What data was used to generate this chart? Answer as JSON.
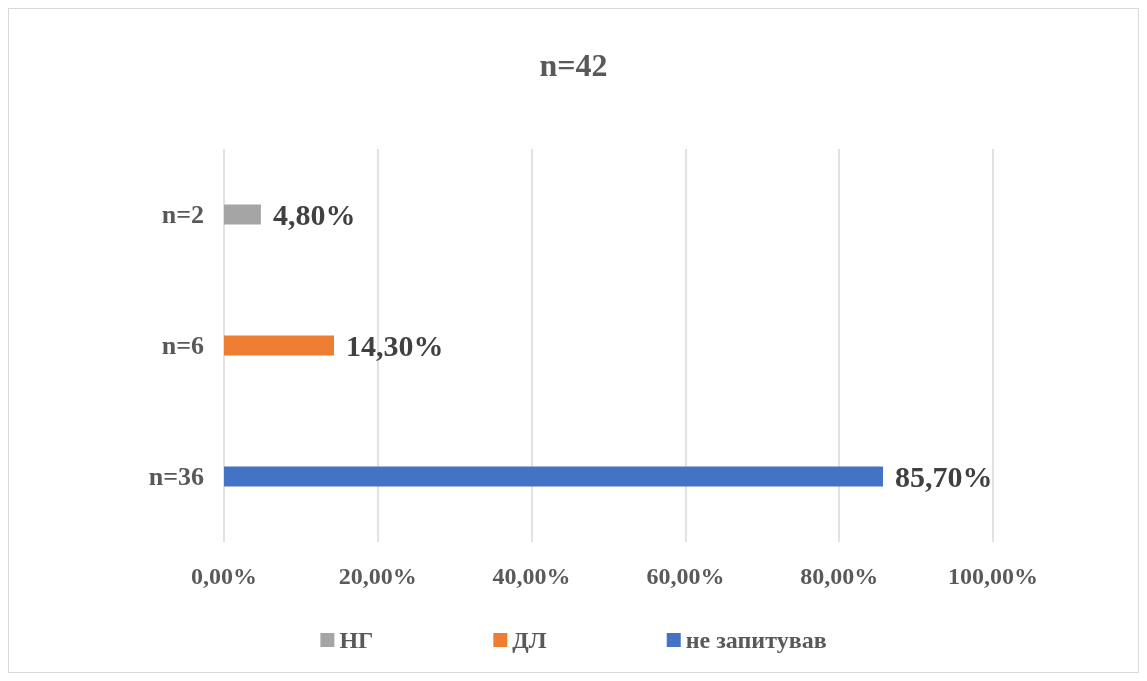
{
  "chart_data": {
    "type": "bar",
    "orientation": "horizontal",
    "title": "n=42",
    "categories": [
      "n=2",
      "n=6",
      "n=36"
    ],
    "series": [
      {
        "name": "НГ",
        "color": "#a5a5a5",
        "values": [
          4.8,
          null,
          null
        ],
        "value_labels": [
          "4,80%",
          null,
          null
        ]
      },
      {
        "name": "ДЛ",
        "color": "#ed7d31",
        "values": [
          null,
          14.3,
          null
        ],
        "value_labels": [
          null,
          "14,30%",
          null
        ]
      },
      {
        "name": "не запитував",
        "color": "#4472c4",
        "values": [
          null,
          null,
          85.7
        ],
        "value_labels": [
          null,
          null,
          "85,70%"
        ]
      }
    ],
    "xlim": [
      0,
      100
    ],
    "xticks": [
      {
        "value": 0,
        "label": "0,00%"
      },
      {
        "value": 20,
        "label": "20,00%"
      },
      {
        "value": 40,
        "label": "40,00%"
      },
      {
        "value": 60,
        "label": "60,00%"
      },
      {
        "value": 80,
        "label": "80,00%"
      },
      {
        "value": 100,
        "label": "100,00%"
      }
    ],
    "grid": "x",
    "legend": "bottom"
  }
}
